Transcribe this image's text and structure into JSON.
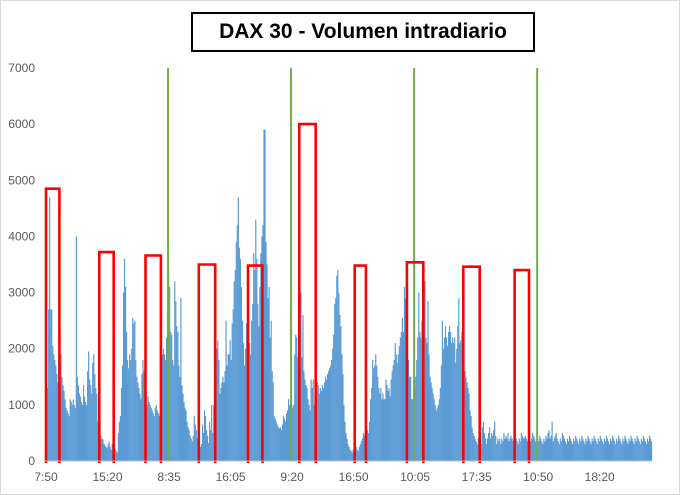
{
  "chart_data": {
    "type": "bar",
    "title": "DAX 30 - Volumen intradiario",
    "xlabel": "",
    "ylabel": "",
    "ylim": [
      0,
      7000
    ],
    "y_ticks": [
      "0",
      "1000",
      "2000",
      "3000",
      "4000",
      "5000",
      "6000",
      "7000"
    ],
    "x_tick_labels": [
      "7:50",
      "15:20",
      "8:35",
      "16:05",
      "9:20",
      "16:50",
      "10:05",
      "17:35",
      "10:50",
      "18:20"
    ],
    "grid": false,
    "bar_color": "#5b9bd5",
    "session_divider_color": "#70ad47",
    "highlight_color": "#ff0000",
    "sessions": 5,
    "periods_per_session": 120,
    "session_dividers_at_period": [
      120,
      240,
      360,
      480
    ],
    "highlight_periods": [
      {
        "from": 1,
        "to": 14,
        "level": 4850
      },
      {
        "from": 53,
        "to": 67,
        "level": 3720
      },
      {
        "from": 98,
        "to": 113,
        "level": 3660
      },
      {
        "from": 150,
        "to": 166,
        "level": 3500
      },
      {
        "from": 198,
        "to": 212,
        "level": 3480
      },
      {
        "from": 248,
        "to": 264,
        "level": 6000
      },
      {
        "from": 302,
        "to": 313,
        "level": 3480
      },
      {
        "from": 353,
        "to": 369,
        "level": 3540
      },
      {
        "from": 408,
        "to": 424,
        "level": 3460
      },
      {
        "from": 458,
        "to": 472,
        "level": 3400
      }
    ],
    "values": [
      1000,
      1300,
      1300,
      2700,
      4700,
      2700,
      2700,
      2050,
      1900,
      1800,
      1700,
      1550,
      1400,
      1300,
      1650,
      1900,
      1500,
      1350,
      1250,
      1100,
      950,
      900,
      850,
      800,
      1100,
      1050,
      1000,
      1100,
      1000,
      950,
      4000,
      1500,
      1350,
      1200,
      1150,
      1050,
      1000,
      1350,
      1150,
      1050,
      1000,
      1600,
      1950,
      1450,
      1350,
      1200,
      1750,
      1900,
      1550,
      1300,
      1200,
      700,
      600,
      500,
      450,
      400,
      380,
      300,
      280,
      250,
      230,
      300,
      350,
      250,
      200,
      300,
      350,
      280,
      220,
      180,
      150,
      500,
      700,
      800,
      1300,
      1700,
      3000,
      3600,
      3100,
      2300,
      1800,
      1650,
      1900,
      1800,
      2000,
      2550,
      2450,
      2500,
      1800,
      1500,
      1400,
      1300,
      1200,
      1100,
      1550,
      1800,
      1600,
      1400,
      1200,
      1000,
      1150,
      1050,
      1000,
      950,
      900,
      850,
      800,
      950,
      1000,
      900,
      850,
      800,
      850,
      1300,
      1900,
      2000,
      1900,
      1800,
      2200,
      2700,
      3400,
      3100,
      2300,
      2250,
      1800,
      1700,
      3200,
      2850,
      2400,
      2300,
      1700,
      1500,
      2900,
      1350,
      1200,
      1050,
      950,
      900,
      700,
      600,
      550,
      450,
      400,
      350,
      450,
      800,
      650,
      550,
      400,
      380,
      300,
      250,
      300,
      650,
      500,
      900,
      800,
      550,
      450,
      320,
      700,
      550,
      1000,
      500,
      1000,
      1500,
      1900,
      2000,
      2150,
      1800,
      1200,
      1300,
      1400,
      1500,
      1400,
      1600,
      2500,
      1700,
      1900,
      1900,
      2150,
      1800,
      2450,
      2700,
      3200,
      3400,
      3900,
      4200,
      4700,
      3800,
      3600,
      3100,
      2500,
      2100,
      1700,
      2000,
      2450,
      2200,
      2000,
      2100,
      1900,
      2500,
      2800,
      3700,
      3400,
      4300,
      3600,
      2800,
      2400,
      3100,
      3700,
      4000,
      4200,
      5900,
      5900,
      3900,
      3500,
      2900,
      3100,
      2200,
      2500,
      1600,
      1400,
      800,
      750,
      700,
      650,
      600,
      580,
      600,
      550,
      650,
      800,
      750,
      700,
      850,
      900,
      1100,
      1000,
      1050,
      1000,
      950,
      1000,
      1900,
      2250,
      2200,
      1850,
      2350,
      2000,
      3000,
      1850,
      2600,
      1600,
      1450,
      1350,
      1300,
      1100,
      1000,
      900,
      1450,
      1300,
      1450,
      1000,
      1000,
      900,
      1400,
      1350,
      1200,
      1300,
      1250,
      1350,
      1300,
      1400,
      1500,
      1450,
      1550,
      1600,
      1650,
      1700,
      1800,
      2000,
      2250,
      2800,
      2900,
      3300,
      3400,
      3000,
      2600,
      2400,
      1900,
      1550,
      1000,
      700,
      500,
      400,
      300,
      250,
      200,
      180,
      150,
      200,
      250,
      300,
      250,
      200,
      180,
      250,
      300,
      350,
      400,
      500,
      450,
      550,
      600,
      550,
      500,
      700,
      1100,
      1300,
      1800,
      1650,
      1700,
      1900,
      1700,
      1500,
      1300,
      1200,
      1300,
      1100,
      1200,
      1100,
      1100,
      1450,
      1350,
      1250,
      1300,
      1150,
      1450,
      1600,
      1700,
      1800,
      2100,
      1900,
      1750,
      1900,
      2050,
      2200,
      2300,
      2550,
      2300,
      3100,
      2900,
      2600,
      1800,
      1800,
      1500,
      1500,
      1100,
      1100,
      1300,
      1300,
      1500,
      1800,
      2200,
      3000,
      2300,
      2200,
      2500,
      2700,
      1900,
      3200,
      2200,
      2100,
      2850,
      1900,
      1500,
      1400,
      1300,
      1200,
      1100,
      1000,
      900,
      950,
      1000,
      1100,
      1300,
      1700,
      2500,
      2000,
      2200,
      2400,
      2200,
      2050,
      2300,
      2400,
      2300,
      2100,
      2200,
      2100,
      2200,
      1750,
      2000,
      2400,
      2900,
      2100,
      2150,
      2300,
      2000,
      1800,
      1600,
      1500,
      1400,
      1300,
      1200,
      900,
      800,
      600,
      500,
      450,
      400,
      350,
      300,
      400,
      500,
      400,
      300,
      600,
      700,
      500,
      400,
      300,
      400,
      500,
      600,
      400,
      500,
      450,
      550,
      700,
      450,
      300,
      400,
      350,
      400,
      300,
      400,
      350,
      500,
      400,
      450,
      400,
      500,
      350,
      400,
      450,
      400,
      350,
      550,
      450,
      400,
      350,
      300,
      400,
      350,
      500,
      450,
      400,
      420,
      450,
      400,
      350,
      300,
      400,
      350,
      400,
      500,
      450,
      400,
      350,
      300,
      400,
      350,
      450,
      400,
      350,
      300,
      400,
      350,
      450,
      400,
      500,
      550,
      400,
      450,
      700,
      350,
      400,
      450,
      500,
      400,
      350,
      300,
      400,
      350,
      500,
      450,
      400,
      350,
      300,
      400,
      350,
      450,
      400,
      350,
      300,
      400,
      350,
      450,
      400,
      350,
      300,
      400,
      350,
      450,
      400,
      350,
      300,
      400,
      350,
      450,
      400,
      350,
      300,
      400,
      350,
      450,
      400,
      350,
      300,
      400,
      350,
      450,
      400,
      350,
      300,
      400,
      350,
      450,
      400,
      350,
      300,
      400,
      350,
      450,
      400,
      350,
      300,
      400,
      350,
      450,
      400,
      350,
      300,
      400,
      350,
      450,
      400,
      350,
      300,
      400,
      350,
      450,
      400,
      350,
      300,
      400,
      350,
      450,
      400,
      350,
      300,
      400,
      350,
      450,
      400,
      350,
      300,
      400,
      350,
      450,
      400,
      350
    ]
  }
}
